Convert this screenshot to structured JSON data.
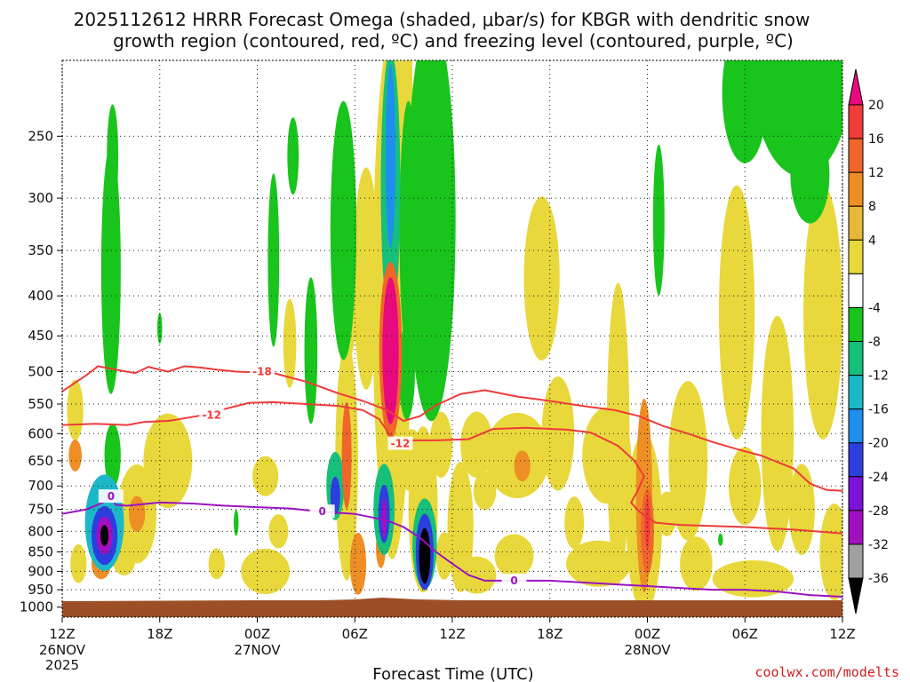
{
  "chart_data": {
    "type": "time-height cross section",
    "title_line1": "2025112612 HRRR Forecast Omega (shaded, μbar/s) for KBGR with dendritic snow",
    "title_line2": "growth region (contoured, red, ºC) and freezing level (contoured, purple, ºC)",
    "xlabel": "Forecast Time (UTC)",
    "credit": "coolwx.com/modelts",
    "x_range_hours": [
      0,
      48
    ],
    "y_range_hPa": [
      1030,
      200
    ],
    "pressure_levels": [
      250,
      300,
      350,
      400,
      450,
      500,
      550,
      600,
      650,
      700,
      750,
      800,
      850,
      900,
      950,
      1000
    ],
    "x_ticks": [
      {
        "hour": 0,
        "label": "12Z",
        "sub1": "26NOV",
        "sub2": "2025"
      },
      {
        "hour": 6,
        "label": "18Z",
        "sub1": "",
        "sub2": ""
      },
      {
        "hour": 12,
        "label": "00Z",
        "sub1": "27NOV",
        "sub2": ""
      },
      {
        "hour": 18,
        "label": "06Z",
        "sub1": "",
        "sub2": ""
      },
      {
        "hour": 24,
        "label": "12Z",
        "sub1": "",
        "sub2": ""
      },
      {
        "hour": 30,
        "label": "18Z",
        "sub1": "",
        "sub2": ""
      },
      {
        "hour": 36,
        "label": "00Z",
        "sub1": "28NOV",
        "sub2": ""
      },
      {
        "hour": 42,
        "label": "06Z",
        "sub1": "",
        "sub2": ""
      },
      {
        "hour": 48,
        "label": "12Z",
        "sub1": "",
        "sub2": ""
      }
    ],
    "colorbar": {
      "units": "μbar/s",
      "labels": [
        "20",
        "16",
        "12",
        "8",
        "4",
        "-4",
        "-8",
        "-12",
        "-16",
        "-20",
        "-24",
        "-28",
        "-32",
        "-36"
      ],
      "bins": [
        {
          "color": "#e8097e"
        },
        {
          "color": "#f23b3b"
        },
        {
          "color": "#f0662a"
        },
        {
          "color": "#ee8f26"
        },
        {
          "color": "#e8b83a"
        },
        {
          "color": "#e8d83b"
        },
        {
          "color": "#ffffff"
        },
        {
          "color": "#19c41c"
        },
        {
          "color": "#16c07a"
        },
        {
          "color": "#1cb8c8"
        },
        {
          "color": "#1f8ef0"
        },
        {
          "color": "#2d3ee0"
        },
        {
          "color": "#7c13d8"
        },
        {
          "color": "#a20fc0"
        },
        {
          "color": "#a0a0a0"
        },
        {
          "color": "#000000"
        }
      ]
    },
    "omega_features": [
      {
        "t": 0.8,
        "p": 560,
        "rt": 0.5,
        "rp": 50,
        "v": 5
      },
      {
        "t": 0.8,
        "p": 640,
        "rt": 0.4,
        "rp": 30,
        "v": 9
      },
      {
        "t": 1.0,
        "p": 880,
        "rt": 0.5,
        "rp": 50,
        "v": 6
      },
      {
        "t": 2.6,
        "p": 780,
        "rt": 1.2,
        "rp": 110,
        "v": -13
      },
      {
        "t": 2.6,
        "p": 810,
        "rt": 0.8,
        "rp": 70,
        "v": -22
      },
      {
        "t": 2.6,
        "p": 810,
        "rt": 0.5,
        "rp": 45,
        "v": -30
      },
      {
        "t": 2.6,
        "p": 810,
        "rt": 0.25,
        "rp": 25,
        "v": -38
      },
      {
        "t": 2.4,
        "p": 880,
        "rt": 0.6,
        "rp": 40,
        "v": 8
      },
      {
        "t": 3.1,
        "p": 640,
        "rt": 0.5,
        "rp": 60,
        "v": -6
      },
      {
        "t": 3.0,
        "p": 370,
        "rt": 0.6,
        "rp": 130,
        "v": -6
      },
      {
        "t": 3.1,
        "p": 265,
        "rt": 0.35,
        "rp": 40,
        "v": -5
      },
      {
        "t": 4.6,
        "p": 760,
        "rt": 1.2,
        "rp": 110,
        "v": 6
      },
      {
        "t": 4.6,
        "p": 760,
        "rt": 0.5,
        "rp": 40,
        "v": 10
      },
      {
        "t": 3.8,
        "p": 870,
        "rt": 0.7,
        "rp": 40,
        "v": 5
      },
      {
        "t": 6.5,
        "p": 650,
        "rt": 1.5,
        "rp": 90,
        "v": 5
      },
      {
        "t": 6.0,
        "p": 440,
        "rt": 0.15,
        "rp": 20,
        "v": -5
      },
      {
        "t": 9.5,
        "p": 880,
        "rt": 0.5,
        "rp": 40,
        "v": 5
      },
      {
        "t": 10.7,
        "p": 780,
        "rt": 0.15,
        "rp": 30,
        "v": -5
      },
      {
        "t": 12.5,
        "p": 900,
        "rt": 1.5,
        "rp": 60,
        "v": 5
      },
      {
        "t": 12.5,
        "p": 680,
        "rt": 0.8,
        "rp": 40,
        "v": 5
      },
      {
        "t": 13.3,
        "p": 800,
        "rt": 0.6,
        "rp": 40,
        "v": 5
      },
      {
        "t": 13.0,
        "p": 360,
        "rt": 0.35,
        "rp": 90,
        "v": -6
      },
      {
        "t": 14.2,
        "p": 265,
        "rt": 0.35,
        "rp": 30,
        "v": -5
      },
      {
        "t": 14.0,
        "p": 460,
        "rt": 0.4,
        "rp": 60,
        "v": 5
      },
      {
        "t": 15.3,
        "p": 470,
        "rt": 0.4,
        "rp": 100,
        "v": -5
      },
      {
        "t": 16.8,
        "p": 700,
        "rt": 0.55,
        "rp": 70,
        "v": -10
      },
      {
        "t": 16.8,
        "p": 720,
        "rt": 0.3,
        "rp": 40,
        "v": -20
      },
      {
        "t": 17.5,
        "p": 650,
        "rt": 0.7,
        "rp": 220,
        "v": 6
      },
      {
        "t": 17.5,
        "p": 640,
        "rt": 0.3,
        "rp": 100,
        "v": 13
      },
      {
        "t": 17.3,
        "p": 330,
        "rt": 0.8,
        "rp": 120,
        "v": -6
      },
      {
        "t": 17.5,
        "p": 420,
        "rt": 0.6,
        "rp": 60,
        "v": 5
      },
      {
        "t": 18.7,
        "p": 380,
        "rt": 0.8,
        "rp": 120,
        "v": 5
      },
      {
        "t": 18.2,
        "p": 880,
        "rt": 0.5,
        "rp": 80,
        "v": 9
      },
      {
        "t": 19.6,
        "p": 840,
        "rt": 0.3,
        "rp": 50,
        "v": 8
      },
      {
        "t": 20.3,
        "p": 400,
        "rt": 1.2,
        "rp": 260,
        "v": 5
      },
      {
        "t": 20.2,
        "p": 470,
        "rt": 0.7,
        "rp": 120,
        "v": 12
      },
      {
        "t": 20.2,
        "p": 470,
        "rt": 0.5,
        "rp": 100,
        "v": 22
      },
      {
        "t": 20.2,
        "p": 290,
        "rt": 0.6,
        "rp": 110,
        "v": -10
      },
      {
        "t": 20.2,
        "p": 265,
        "rt": 0.3,
        "rp": 70,
        "v": -16
      },
      {
        "t": 19.8,
        "p": 750,
        "rt": 0.65,
        "rp": 100,
        "v": -10
      },
      {
        "t": 19.8,
        "p": 760,
        "rt": 0.35,
        "rp": 65,
        "v": -22
      },
      {
        "t": 19.8,
        "p": 770,
        "rt": 0.15,
        "rp": 45,
        "v": -30
      },
      {
        "t": 21.2,
        "p": 220,
        "rt": 0.35,
        "rp": 70,
        "v": 5
      },
      {
        "t": 21.3,
        "p": 330,
        "rt": 0.55,
        "rp": 120,
        "v": -6
      },
      {
        "t": 22.7,
        "p": 320,
        "rt": 1.5,
        "rp": 170,
        "v": -7
      },
      {
        "t": 21.2,
        "p": 500,
        "rt": 0.5,
        "rp": 70,
        "v": -6
      },
      {
        "t": 21.5,
        "p": 650,
        "rt": 0.8,
        "rp": 60,
        "v": 5
      },
      {
        "t": 22.2,
        "p": 750,
        "rt": 0.9,
        "rp": 180,
        "v": 5
      },
      {
        "t": 22.3,
        "p": 830,
        "rt": 0.75,
        "rp": 110,
        "v": -10
      },
      {
        "t": 22.3,
        "p": 850,
        "rt": 0.55,
        "rp": 95,
        "v": -22
      },
      {
        "t": 22.3,
        "p": 860,
        "rt": 0.35,
        "rp": 70,
        "v": -38
      },
      {
        "t": 23.3,
        "p": 620,
        "rt": 0.7,
        "rp": 60,
        "v": 6
      },
      {
        "t": 23.5,
        "p": 860,
        "rt": 0.5,
        "rp": 60,
        "v": 5
      },
      {
        "t": 24.5,
        "p": 790,
        "rt": 0.8,
        "rp": 150,
        "v": 5
      },
      {
        "t": 25.5,
        "p": 910,
        "rt": 1.2,
        "rp": 50,
        "v": 5
      },
      {
        "t": 25.5,
        "p": 620,
        "rt": 1.0,
        "rp": 60,
        "v": 5
      },
      {
        "t": 26.0,
        "p": 710,
        "rt": 0.7,
        "rp": 40,
        "v": 5
      },
      {
        "t": 28.0,
        "p": 640,
        "rt": 2.0,
        "rp": 80,
        "v": 5
      },
      {
        "t": 28.3,
        "p": 660,
        "rt": 0.5,
        "rp": 30,
        "v": 9
      },
      {
        "t": 27.8,
        "p": 860,
        "rt": 1.2,
        "rp": 55,
        "v": 5
      },
      {
        "t": 29.5,
        "p": 380,
        "rt": 1.1,
        "rp": 90,
        "v": 5
      },
      {
        "t": 30.5,
        "p": 600,
        "rt": 1.0,
        "rp": 100,
        "v": 5
      },
      {
        "t": 31.5,
        "p": 780,
        "rt": 0.6,
        "rp": 60,
        "v": 5
      },
      {
        "t": 33.0,
        "p": 880,
        "rt": 2.0,
        "rp": 60,
        "v": 5
      },
      {
        "t": 33.5,
        "p": 640,
        "rt": 1.5,
        "rp": 90,
        "v": 5
      },
      {
        "t": 34.2,
        "p": 600,
        "rt": 0.7,
        "rp": 250,
        "v": 6
      },
      {
        "t": 35.8,
        "p": 780,
        "rt": 1.1,
        "rp": 200,
        "v": 6
      },
      {
        "t": 35.8,
        "p": 720,
        "rt": 0.5,
        "rp": 200,
        "v": 9
      },
      {
        "t": 36.0,
        "p": 800,
        "rt": 0.4,
        "rp": 100,
        "v": 13
      },
      {
        "t": 36.0,
        "p": 780,
        "rt": 0.15,
        "rp": 60,
        "v": 17
      },
      {
        "t": 37.2,
        "p": 760,
        "rt": 0.6,
        "rp": 50,
        "v": 5
      },
      {
        "t": 36.7,
        "p": 320,
        "rt": 0.35,
        "rp": 70,
        "v": -6
      },
      {
        "t": 38.5,
        "p": 650,
        "rt": 1.2,
        "rp": 150,
        "v": 5
      },
      {
        "t": 39.0,
        "p": 880,
        "rt": 1.0,
        "rp": 70,
        "v": 5
      },
      {
        "t": 40.5,
        "p": 820,
        "rt": 0.15,
        "rp": 15,
        "v": -6
      },
      {
        "t": 41.5,
        "p": 420,
        "rt": 1.1,
        "rp": 150,
        "v": 5
      },
      {
        "t": 42.5,
        "p": 920,
        "rt": 2.5,
        "rp": 50,
        "v": 5
      },
      {
        "t": 42.0,
        "p": 700,
        "rt": 1.0,
        "rp": 80,
        "v": 5
      },
      {
        "t": 44.0,
        "p": 600,
        "rt": 1.0,
        "rp": 200,
        "v": 5
      },
      {
        "t": 45.5,
        "p": 750,
        "rt": 0.8,
        "rp": 100,
        "v": 5
      },
      {
        "t": 46.8,
        "p": 420,
        "rt": 1.2,
        "rp": 150,
        "v": 5
      },
      {
        "t": 47.5,
        "p": 850,
        "rt": 0.9,
        "rp": 120,
        "v": 5
      },
      {
        "t": 46.5,
        "p": 500,
        "rt": 0.4,
        "rp": 25,
        "v": 0
      },
      {
        "t": 45.5,
        "p": 210,
        "rt": 3.0,
        "rp": 60,
        "v": -7
      },
      {
        "t": 46.0,
        "p": 280,
        "rt": 1.2,
        "rp": 40,
        "v": -6
      },
      {
        "t": 42.0,
        "p": 220,
        "rt": 1.4,
        "rp": 45,
        "v": -6
      }
    ],
    "contours": {
      "dgz_minus18": {
        "color": "#ee3b3b",
        "label": "-18",
        "label_at": [
          12.3,
          500
        ],
        "points": [
          [
            0,
            530
          ],
          [
            1.5,
            505
          ],
          [
            2.2,
            492
          ],
          [
            3.5,
            498
          ],
          [
            4.5,
            502
          ],
          [
            5.3,
            493
          ],
          [
            6.5,
            500
          ],
          [
            7.5,
            492
          ],
          [
            8.5,
            494
          ],
          [
            9.5,
            497
          ],
          [
            10.7,
            500
          ],
          [
            13,
            502
          ],
          [
            15,
            515
          ],
          [
            17,
            533
          ],
          [
            18.5,
            545
          ],
          [
            20,
            560
          ],
          [
            21,
            578
          ],
          [
            22,
            570
          ],
          [
            23,
            552
          ],
          [
            24.5,
            534
          ],
          [
            26,
            528
          ],
          [
            28,
            538
          ],
          [
            30,
            545
          ],
          [
            32,
            553
          ],
          [
            34,
            560
          ],
          [
            35.5,
            570
          ],
          [
            37,
            587
          ],
          [
            38.5,
            600
          ],
          [
            40,
            615
          ],
          [
            41.5,
            628
          ],
          [
            43,
            640
          ],
          [
            45,
            665
          ],
          [
            46,
            695
          ],
          [
            47,
            708
          ],
          [
            48,
            710
          ]
        ]
      },
      "dgz_minus12": {
        "color": "#ee3b3b",
        "label": "-12",
        "label_at": [
          9.2,
          568
        ],
        "points": [
          [
            0,
            585
          ],
          [
            2,
            583
          ],
          [
            4,
            585
          ],
          [
            5,
            580
          ],
          [
            6.5,
            578
          ],
          [
            7,
            576
          ],
          [
            8.7,
            568
          ],
          [
            10,
            558
          ],
          [
            11.5,
            548
          ],
          [
            13,
            547
          ],
          [
            15,
            550
          ],
          [
            17,
            553
          ],
          [
            18.5,
            560
          ],
          [
            19.5,
            575
          ],
          [
            20.1,
            600
          ],
          [
            20.8,
            620
          ],
          [
            21.5,
            612
          ],
          [
            23,
            612
          ],
          [
            25,
            610
          ],
          [
            26.5,
            592
          ],
          [
            28.5,
            590
          ],
          [
            31,
            593
          ],
          [
            32.5,
            598
          ],
          [
            34.2,
            622
          ],
          [
            35.2,
            650
          ],
          [
            35.8,
            680
          ],
          [
            35.4,
            710
          ],
          [
            35,
            735
          ],
          [
            35.5,
            755
          ],
          [
            36.5,
            780
          ],
          [
            38,
            785
          ],
          [
            42,
            790
          ],
          [
            45,
            796
          ],
          [
            48,
            805
          ]
        ]
      },
      "freezing_level": {
        "color": "#9b13c2",
        "label": "0",
        "label_inline": [
          [
            3.0,
            722
          ],
          [
            16.0,
            755
          ],
          [
            27.8,
            925
          ]
        ],
        "points": [
          [
            0,
            760
          ],
          [
            1.5,
            750
          ],
          [
            2.5,
            735
          ],
          [
            3.0,
            722
          ],
          [
            3.3,
            740
          ],
          [
            4,
            742
          ],
          [
            6,
            735
          ],
          [
            8,
            737
          ],
          [
            10,
            742
          ],
          [
            12,
            745
          ],
          [
            14,
            748
          ],
          [
            16,
            755
          ],
          [
            18,
            760
          ],
          [
            20,
            775
          ],
          [
            21,
            790
          ],
          [
            22,
            815
          ],
          [
            23,
            850
          ],
          [
            24,
            880
          ],
          [
            25,
            910
          ],
          [
            26,
            925
          ],
          [
            28,
            925
          ],
          [
            30,
            925
          ],
          [
            32,
            930
          ],
          [
            34,
            935
          ],
          [
            36,
            940
          ],
          [
            38,
            945
          ],
          [
            40,
            950
          ],
          [
            42,
            950
          ],
          [
            44,
            955
          ],
          [
            46,
            965
          ],
          [
            48,
            970
          ]
        ]
      }
    }
  }
}
